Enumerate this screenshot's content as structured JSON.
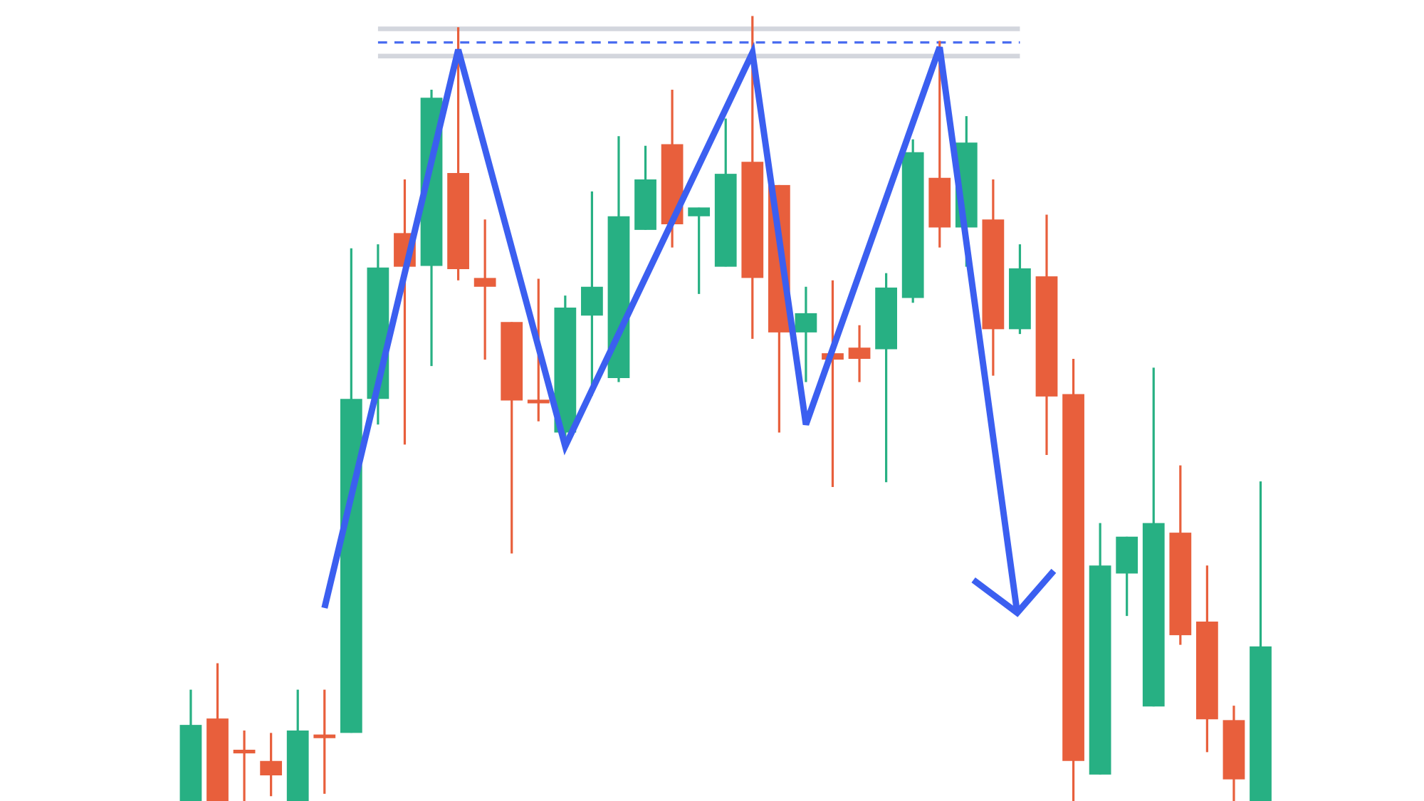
{
  "chart_data": {
    "type": "candlestick",
    "title": "",
    "xlabel": "",
    "ylabel": "",
    "axes_visible": false,
    "grid": false,
    "ylim": [
      0,
      100
    ],
    "colors": {
      "up": "#27b083",
      "down": "#e85f3c",
      "pattern_line": "#3b5ff0",
      "resistance_band": "#d3d6dd",
      "resistance_dashed": "#4a6cf0",
      "background": "#ffffff"
    },
    "candles_ohlc": [
      [
        0,
        13.9,
        0,
        9.5
      ],
      [
        10.3,
        17.2,
        0,
        0
      ],
      [
        6.4,
        8.8,
        0,
        6.0
      ],
      [
        5.0,
        8.5,
        0.6,
        3.2
      ],
      [
        0,
        13.9,
        0,
        8.8
      ],
      [
        8.3,
        13.9,
        0.9,
        8.0
      ],
      [
        8.5,
        69.0,
        8.5,
        50.2
      ],
      [
        50.2,
        69.5,
        47.0,
        66.6
      ],
      [
        70.9,
        77.6,
        44.5,
        66.7
      ],
      [
        66.8,
        88.8,
        54.3,
        87.8
      ],
      [
        78.4,
        96.6,
        65.0,
        66.4
      ],
      [
        65.3,
        72.6,
        55.1,
        64.2
      ],
      [
        59.8,
        59.8,
        30.9,
        50.0
      ],
      [
        50.1,
        65.2,
        47.4,
        49.8
      ],
      [
        46.0,
        63.1,
        45.5,
        61.6
      ],
      [
        60.6,
        76.1,
        50.6,
        64.2
      ],
      [
        52.8,
        83.0,
        52.3,
        73.0
      ],
      [
        71.3,
        81.8,
        71.3,
        77.6
      ],
      [
        82.0,
        88.8,
        69.1,
        72.0
      ],
      [
        73.0,
        74.1,
        63.3,
        74.1
      ],
      [
        66.7,
        85.2,
        66.7,
        78.3
      ],
      [
        79.8,
        98.0,
        57.7,
        65.3
      ],
      [
        76.9,
        76.9,
        46.0,
        58.5
      ],
      [
        58.5,
        64.2,
        52.3,
        60.9
      ],
      [
        55.9,
        65.0,
        39.2,
        55.1
      ],
      [
        56.6,
        59.4,
        52.3,
        55.2
      ],
      [
        56.4,
        65.9,
        39.8,
        64.1
      ],
      [
        62.8,
        82.6,
        62.2,
        81.0
      ],
      [
        77.8,
        94.9,
        69.1,
        71.6
      ],
      [
        71.6,
        85.5,
        66.7,
        82.2
      ],
      [
        72.6,
        77.6,
        53.1,
        58.9
      ],
      [
        58.9,
        69.5,
        58.3,
        66.5
      ],
      [
        65.5,
        73.2,
        43.2,
        50.5
      ],
      [
        50.8,
        55.2,
        0,
        5.0
      ],
      [
        3.3,
        34.7,
        3.3,
        29.4
      ],
      [
        28.4,
        33.0,
        23.1,
        33.0
      ],
      [
        11.8,
        54.1,
        11.8,
        34.7
      ],
      [
        33.5,
        41.9,
        19.5,
        20.7
      ],
      [
        22.4,
        29.4,
        6.1,
        10.2
      ],
      [
        10.1,
        11.9,
        0,
        2.7
      ],
      [
        0,
        39.9,
        0,
        19.3
      ]
    ],
    "pattern": {
      "name": "triple top",
      "line_points": [
        [
          6.0,
          24.1
        ],
        [
          11,
          93.8
        ],
        [
          15,
          44.3
        ],
        [
          22,
          93.4
        ],
        [
          24,
          47.0
        ],
        [
          29,
          94.1
        ],
        [
          31.9,
          23.5
        ]
      ],
      "arrow_direction": "down"
    },
    "resistance": {
      "band_top": 96.4,
      "band_bottom": 93.0,
      "level": 94.7,
      "from_candle": 8,
      "to_candle": 32
    }
  }
}
